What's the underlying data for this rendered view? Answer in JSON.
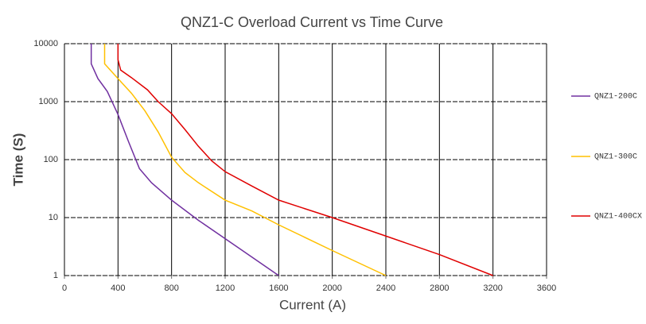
{
  "chart_data": {
    "type": "line",
    "title": "QNZ1-C Overload Current  vs  Time Curve",
    "x_label": "Current (A)",
    "y_label": "Time (S)",
    "xlim": [
      0,
      3600
    ],
    "xticks": [
      0,
      400,
      800,
      1200,
      1600,
      2000,
      2400,
      2800,
      3200,
      3600
    ],
    "ylim": [
      1,
      10000
    ],
    "yticks": [
      1,
      10,
      100,
      1000,
      10000
    ],
    "y_scale": "log",
    "grid": true,
    "legend": "right",
    "series": [
      {
        "name": "QNZ1-200C",
        "color": "#7030a0",
        "x": [
          200,
          200,
          250,
          320,
          400,
          480,
          560,
          650,
          800,
          1000,
          1300,
          1600
        ],
        "values": [
          10000,
          4500,
          2500,
          1500,
          600,
          200,
          70,
          40,
          20,
          9,
          3,
          1
        ]
      },
      {
        "name": "QNZ1-300C",
        "color": "#ffc000",
        "x": [
          300,
          300,
          400,
          500,
          600,
          700,
          800,
          900,
          1000,
          1200,
          1400,
          1600,
          2000,
          2400
        ],
        "values": [
          10000,
          4500,
          2500,
          1400,
          700,
          300,
          110,
          60,
          40,
          20,
          13,
          7.5,
          2.7,
          1
        ]
      },
      {
        "name": "QNZ1-400CX",
        "color": "#e00000",
        "x": [
          400,
          400,
          420,
          500,
          620,
          700,
          800,
          900,
          1000,
          1100,
          1200,
          1400,
          1600,
          2000,
          2400,
          2800,
          3200
        ],
        "values": [
          10000,
          5300,
          3500,
          2600,
          1600,
          1000,
          620,
          330,
          170,
          95,
          62,
          35,
          20,
          10,
          4.8,
          2.3,
          1
        ]
      }
    ]
  }
}
